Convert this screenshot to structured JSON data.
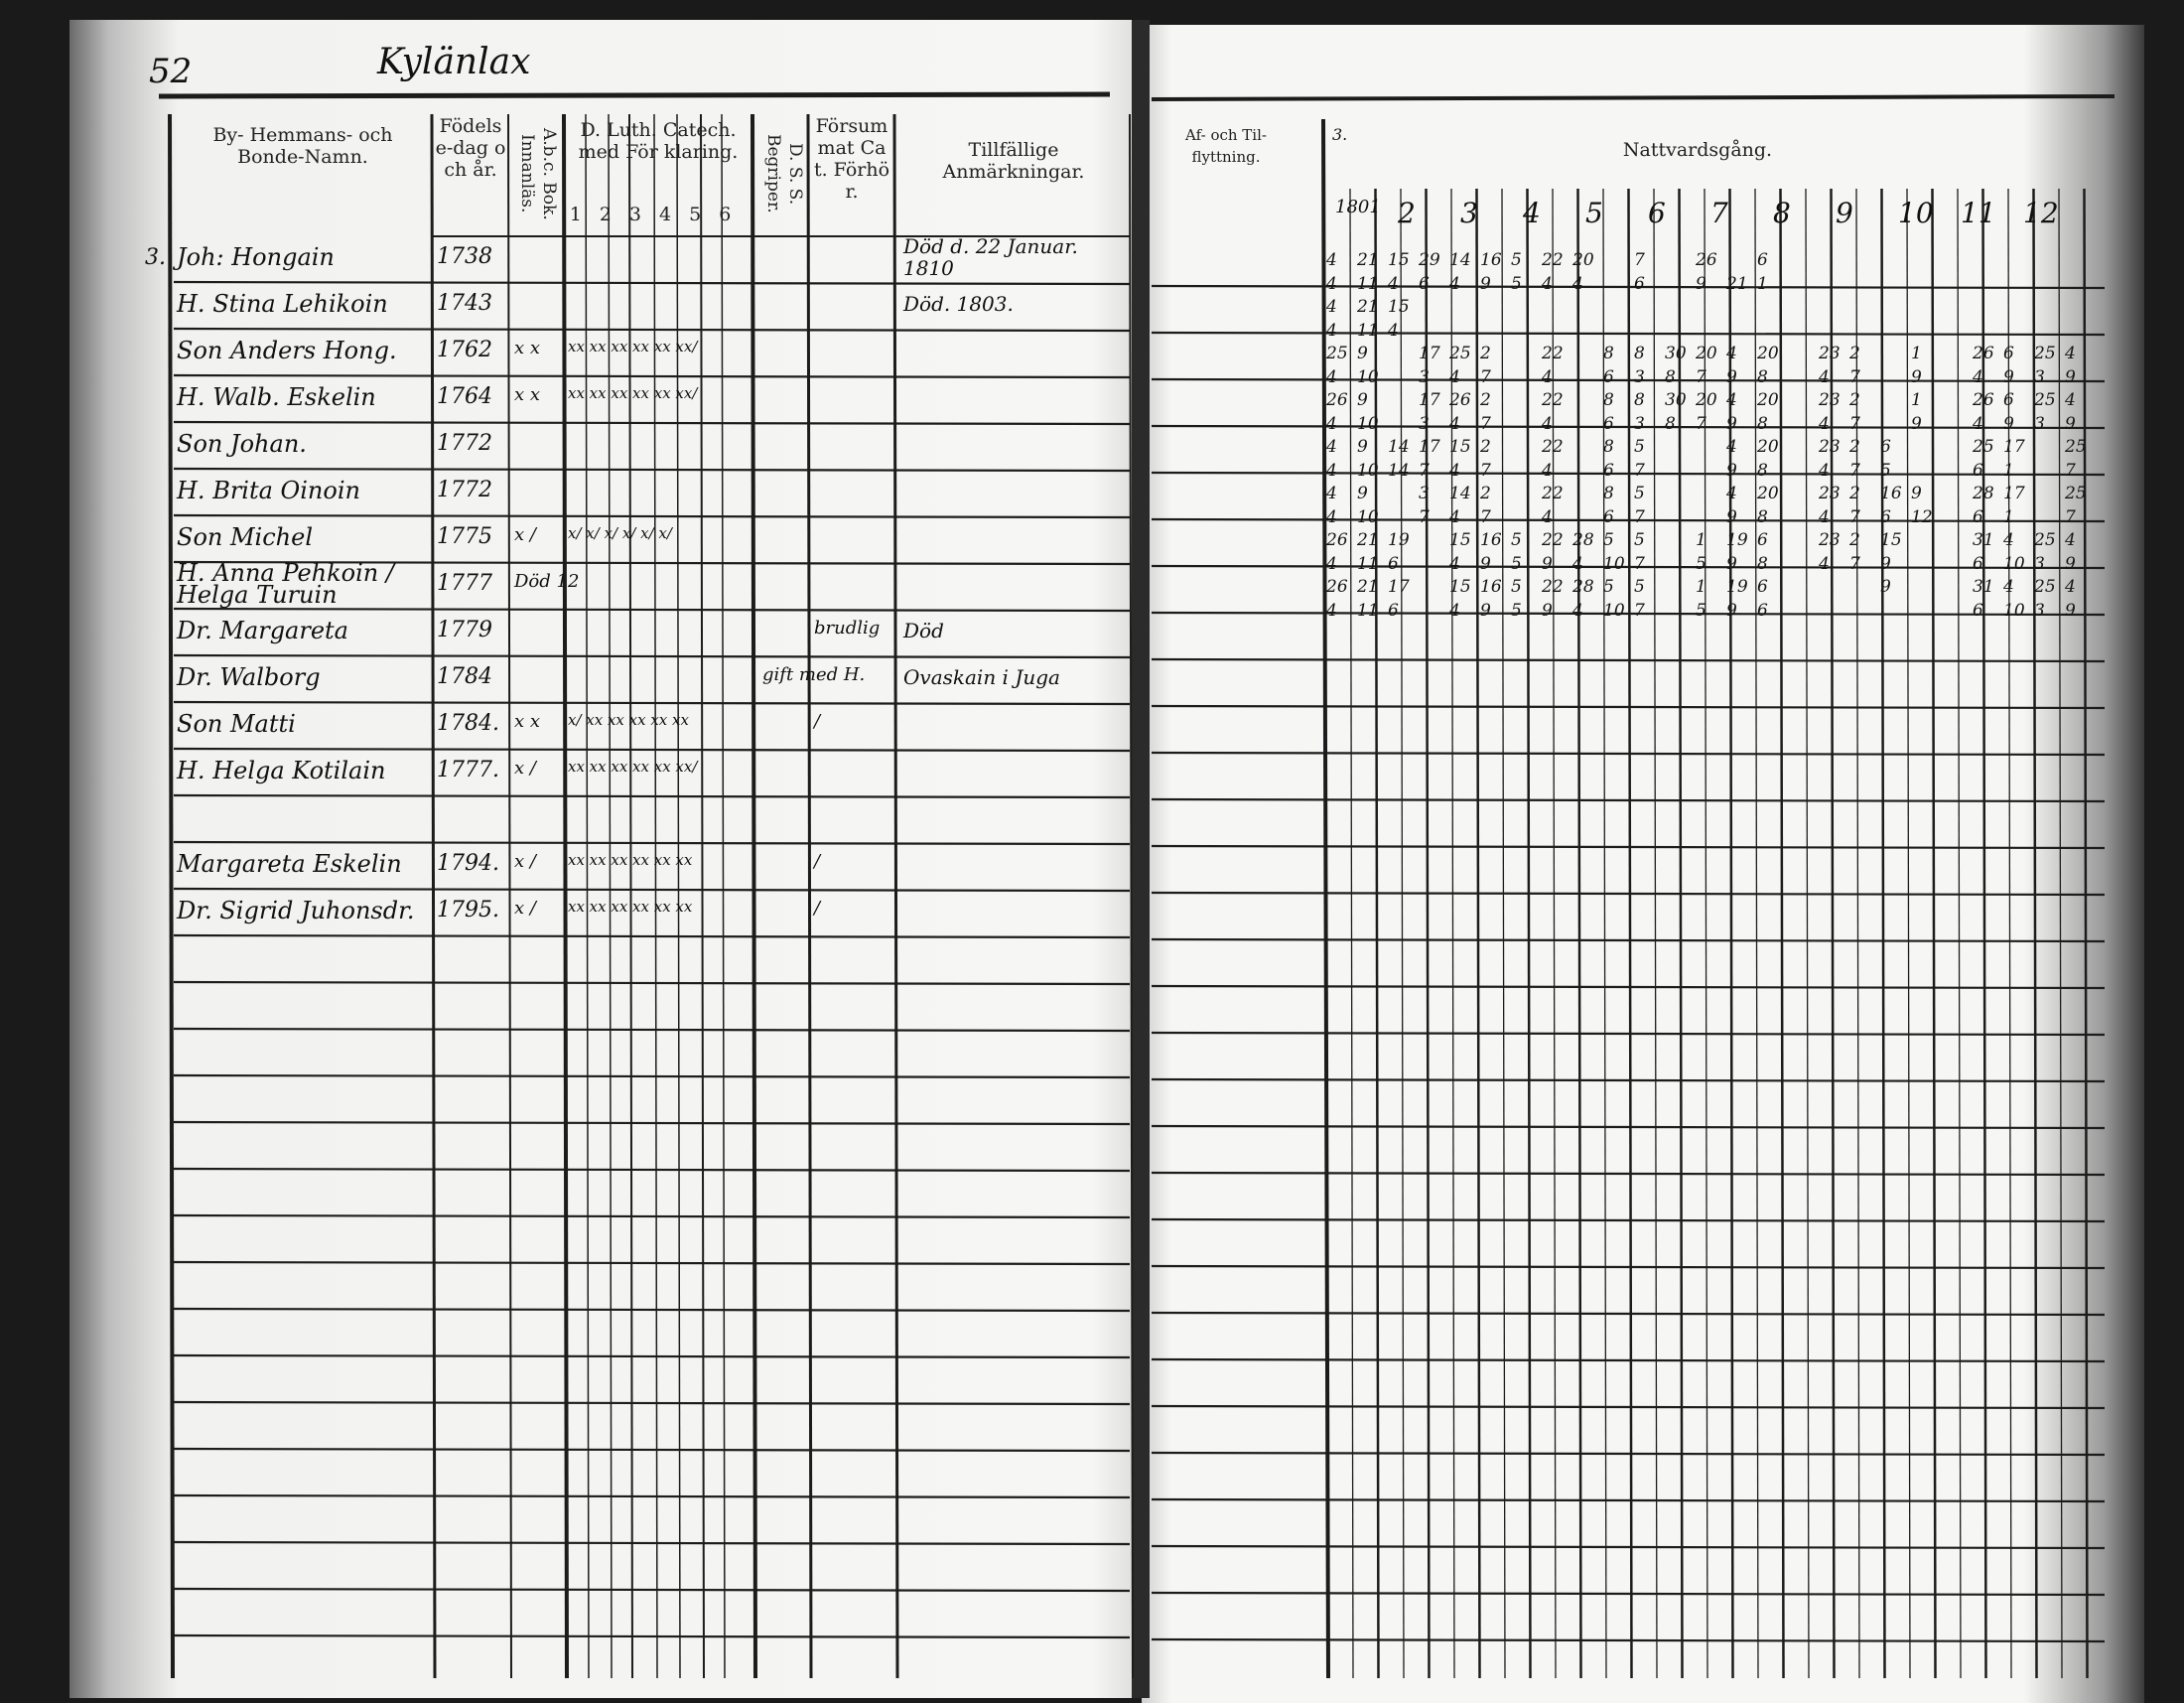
{
  "page_number": "52",
  "village": "Kylänlax",
  "left_headers": {
    "name": "By- Hemmans- och Bonde-Namn.",
    "birth": "Födelse-dag och år.",
    "abc": "A.b.c. Bok. Innanläs.",
    "catechism": "D. Luth. Catech. med För klaring.",
    "catechism_parts": [
      "1",
      "2",
      "3",
      "4",
      "5",
      "6"
    ],
    "dss": "D. S. S. Begriper.",
    "missed": "Försummat Cat. Förhör.",
    "remarks": "Tillfällige Anmärkningar."
  },
  "right_headers": {
    "moving": "Af- och Til- flyttning.",
    "communion": "Nattvardsgång.",
    "years": [
      "1801",
      "2",
      "3",
      "4",
      "5",
      "6",
      "7",
      "8",
      "9",
      "10",
      "11",
      "12"
    ]
  },
  "household_number": "3.",
  "persons": [
    {
      "name": "Joh: Hongain",
      "year": "1738",
      "abc": "",
      "catechism": "",
      "dss": "",
      "missed": "",
      "remark": "Död d. 22 Januar. 1810"
    },
    {
      "name": "H. Stina Lehikoin",
      "year": "1743",
      "abc": "",
      "catechism": "",
      "dss": "",
      "missed": "",
      "remark": "Död. 1803."
    },
    {
      "name": "Son Anders Hong.",
      "year": "1762",
      "abc": "x x",
      "catechism": "xx xx xx xx xx xx/",
      "dss": "",
      "missed": "",
      "remark": ""
    },
    {
      "name": "H. Walb. Eskelin",
      "year": "1764",
      "abc": "x x",
      "catechism": "xx xx xx xx xx xx/",
      "dss": "",
      "missed": "",
      "remark": ""
    },
    {
      "name": "Son Johan.",
      "year": "1772",
      "abc": "",
      "catechism": "",
      "dss": "",
      "missed": "",
      "remark": ""
    },
    {
      "name": "H. Brita Oinoin",
      "year": "1772",
      "abc": "",
      "catechism": "",
      "dss": "",
      "missed": "",
      "remark": ""
    },
    {
      "name": "Son Michel",
      "year": "1775",
      "abc": "x /",
      "catechism": "x/ x/ x/ x/ x/ x/",
      "dss": "",
      "missed": "",
      "remark": ""
    },
    {
      "name": "H. Anna Pehkoin / Helga Turuin",
      "year": "1777",
      "abc": "Död 12",
      "catechism": "",
      "dss": "",
      "missed": "",
      "remark": ""
    },
    {
      "name": "Dr. Margareta",
      "year": "1779",
      "abc": "",
      "catechism": "",
      "dss": "",
      "missed": "brudlig",
      "remark": "Död"
    },
    {
      "name": "Dr. Walborg",
      "year": "1784",
      "abc": "",
      "catechism": "",
      "dss": "",
      "missed": "gift med H.",
      "remark": "Ovaskain i Juga"
    },
    {
      "name": "Son Matti",
      "year": "1784.",
      "abc": "x x",
      "catechism": "x/ xx xx xx xx xx",
      "dss": "/",
      "missed": "",
      "remark": ""
    },
    {
      "name": "H. Helga Kotilain",
      "year": "1777.",
      "abc": "x /",
      "catechism": "xx xx xx xx xx xx/",
      "dss": "",
      "missed": "",
      "remark": ""
    },
    {
      "name": "",
      "year": "",
      "abc": "",
      "catechism": "",
      "dss": "",
      "missed": "",
      "remark": ""
    },
    {
      "name": "Margareta Eskelin",
      "year": "1794.",
      "abc": "x /",
      "catechism": "xx xx xx xx xx xx",
      "dss": "/",
      "missed": "",
      "remark": ""
    },
    {
      "name": "Dr. Sigrid Juhonsdr.",
      "year": "1795.",
      "abc": "x /",
      "catechism": "xx xx xx xx xx xx",
      "dss": "/",
      "missed": "",
      "remark": ""
    }
  ],
  "communion_rows": [
    [
      "4",
      "21",
      "15",
      "29",
      "14",
      "16",
      "5",
      "22",
      "20",
      "",
      "7",
      "",
      "26",
      "",
      "6"
    ],
    [
      "4",
      "11",
      "4",
      "6",
      "4",
      "9",
      "5",
      "4",
      "4",
      "",
      "6",
      "",
      "9",
      "21",
      "1"
    ],
    [
      "4",
      "21",
      "15"
    ],
    [
      "4",
      "11",
      "4"
    ],
    [
      "25",
      "9",
      "",
      "17",
      "25",
      "2",
      "",
      "22",
      "",
      "8",
      "8",
      "30",
      "20",
      "4",
      "20",
      "",
      "23",
      "2",
      "",
      "1",
      "",
      "26",
      "6",
      "25",
      "4"
    ],
    [
      "4",
      "10",
      "",
      "3",
      "4",
      "7",
      "",
      "4",
      "",
      "6",
      "3",
      "8",
      "7",
      "9",
      "8",
      "",
      "4",
      "7",
      "",
      "9",
      "",
      "4",
      "9",
      "3",
      "9"
    ],
    [
      "26",
      "9",
      "",
      "17",
      "26",
      "2",
      "",
      "22",
      "",
      "8",
      "8",
      "30",
      "20",
      "4",
      "20",
      "",
      "23",
      "2",
      "",
      "1",
      "",
      "26",
      "6",
      "25",
      "4"
    ],
    [
      "4",
      "10",
      "",
      "3",
      "4",
      "7",
      "",
      "4",
      "",
      "6",
      "3",
      "8",
      "7",
      "9",
      "8",
      "",
      "4",
      "7",
      "",
      "9",
      "",
      "4",
      "9",
      "3",
      "9"
    ],
    [
      "4",
      "9",
      "14",
      "17",
      "15",
      "2",
      "",
      "22",
      "",
      "8",
      "5",
      "",
      "",
      "4",
      "20",
      "",
      "23",
      "2",
      "6",
      "",
      "",
      "25",
      "17",
      "",
      "25"
    ],
    [
      "4",
      "10",
      "14",
      "7",
      "4",
      "7",
      "",
      "4",
      "",
      "6",
      "7",
      "",
      "",
      "9",
      "8",
      "",
      "4",
      "7",
      "5",
      "",
      "",
      "6",
      "1",
      "",
      "7"
    ],
    [
      "4",
      "9",
      "",
      "3",
      "14",
      "2",
      "",
      "22",
      "",
      "8",
      "5",
      "",
      "",
      "4",
      "20",
      "",
      "23",
      "2",
      "16",
      "9",
      "",
      "28",
      "17",
      "",
      "25"
    ],
    [
      "4",
      "10",
      "",
      "7",
      "4",
      "7",
      "",
      "4",
      "",
      "6",
      "7",
      "",
      "",
      "9",
      "8",
      "",
      "4",
      "7",
      "6",
      "12",
      "",
      "6",
      "1",
      "",
      "7"
    ],
    [
      "26",
      "21",
      "19",
      "",
      "15",
      "16",
      "5",
      "22",
      "28",
      "5",
      "5",
      "",
      "1",
      "19",
      "6",
      "",
      "23",
      "2",
      "15",
      "",
      "",
      "31",
      "4",
      "25",
      "4"
    ],
    [
      "4",
      "11",
      "6",
      "",
      "4",
      "9",
      "5",
      "9",
      "4",
      "10",
      "7",
      "",
      "5",
      "9",
      "8",
      "",
      "4",
      "7",
      "9",
      "",
      "",
      "6",
      "10",
      "3",
      "9"
    ],
    [
      "26",
      "21",
      "17",
      "",
      "15",
      "16",
      "5",
      "22",
      "28",
      "5",
      "5",
      "",
      "1",
      "19",
      "6",
      "",
      "",
      "",
      "9",
      "",
      "",
      "31",
      "4",
      "25",
      "4"
    ],
    [
      "4",
      "11",
      "6",
      "",
      "4",
      "9",
      "5",
      "9",
      "4",
      "10",
      "7",
      "",
      "5",
      "9",
      "6",
      "",
      "",
      "",
      "",
      "",
      "",
      "6",
      "10",
      "3",
      "9"
    ]
  ]
}
